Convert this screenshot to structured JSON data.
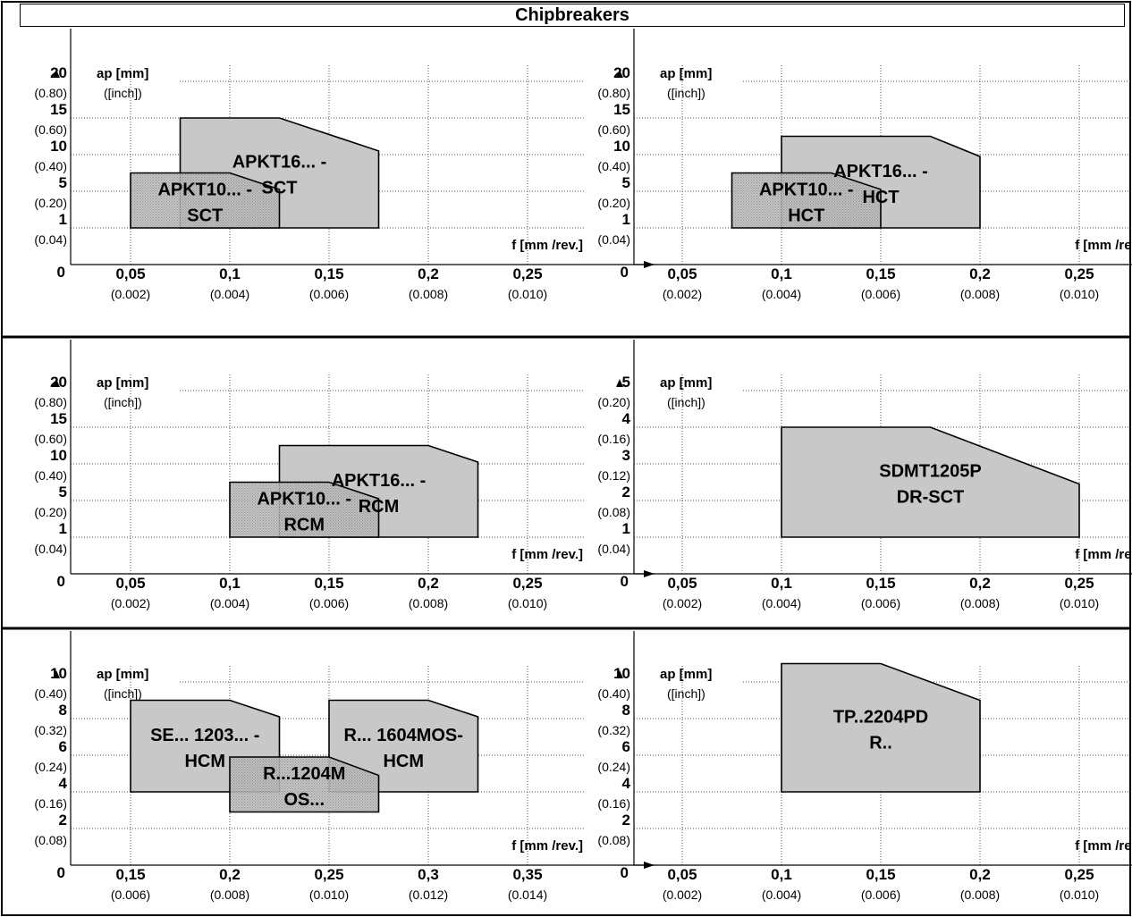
{
  "title": "Chipbreakers",
  "chart_data": [
    {
      "type": "area",
      "ylabel": "ap [mm]",
      "ylabel_sub": "([inch])",
      "xlabel": "f [mm /rev.]",
      "x_ticks": [
        "0,05",
        "0,1",
        "0,15",
        "0,2",
        "0,25"
      ],
      "x_ticks_inch": [
        "(0.002)",
        "(0.004)",
        "(0.006)",
        "(0.008)",
        "(0.010)"
      ],
      "y_ticks": [
        "1",
        "5",
        "10",
        "15",
        "20"
      ],
      "y_ticks_inch": [
        "(0.04)",
        "(0.20)",
        "(0.40)",
        "(0.60)",
        "(0.80)"
      ],
      "origin_label": "0",
      "regions": [
        {
          "label_lines": [
            "APKT16... -",
            "SCT"
          ],
          "shade": "light",
          "points": [
            [
              0.075,
              0
            ],
            [
              0.075,
              3
            ],
            [
              0.125,
              3
            ],
            [
              0.175,
              2.1
            ],
            [
              0.175,
              0
            ]
          ]
        },
        {
          "label_lines": [
            "APKT10... -",
            "SCT"
          ],
          "shade": "dark",
          "points": [
            [
              0.05,
              0
            ],
            [
              0.05,
              1.5
            ],
            [
              0.1,
              1.5
            ],
            [
              0.125,
              1.05
            ],
            [
              0.125,
              0
            ]
          ]
        }
      ]
    },
    {
      "type": "area",
      "ylabel": "ap [mm]",
      "ylabel_sub": "([inch])",
      "xlabel": "f [mm /rev.]",
      "x_ticks": [
        "0,05",
        "0,1",
        "0,15",
        "0,2",
        "0,25"
      ],
      "x_ticks_inch": [
        "(0.002)",
        "(0.004)",
        "(0.006)",
        "(0.008)",
        "(0.010)"
      ],
      "y_ticks": [
        "1",
        "5",
        "10",
        "15",
        "20"
      ],
      "y_ticks_inch": [
        "(0.04)",
        "(0.20)",
        "(0.40)",
        "(0.60)",
        "(0.80)"
      ],
      "origin_label": "0",
      "regions": [
        {
          "label_lines": [
            "APKT16... -",
            "HCT"
          ],
          "shade": "light",
          "points": [
            [
              0.1,
              0
            ],
            [
              0.1,
              2.5
            ],
            [
              0.175,
              2.5
            ],
            [
              0.2,
              1.95
            ],
            [
              0.2,
              0
            ]
          ]
        },
        {
          "label_lines": [
            "APKT10... -",
            "HCT"
          ],
          "shade": "dark",
          "points": [
            [
              0.075,
              0
            ],
            [
              0.075,
              1.5
            ],
            [
              0.125,
              1.5
            ],
            [
              0.15,
              1.05
            ],
            [
              0.15,
              0
            ]
          ]
        }
      ]
    },
    {
      "type": "area",
      "ylabel": "ap [mm]",
      "ylabel_sub": "([inch])",
      "xlabel": "f [mm /rev.]",
      "x_ticks": [
        "0,05",
        "0,1",
        "0,15",
        "0,2",
        "0,25"
      ],
      "x_ticks_inch": [
        "(0.002)",
        "(0.004)",
        "(0.006)",
        "(0.008)",
        "(0.010)"
      ],
      "y_ticks": [
        "1",
        "5",
        "10",
        "15",
        "20"
      ],
      "y_ticks_inch": [
        "(0.04)",
        "(0.20)",
        "(0.40)",
        "(0.60)",
        "(0.80)"
      ],
      "origin_label": "0",
      "regions": [
        {
          "label_lines": [
            "APKT16... -",
            "RCM"
          ],
          "shade": "light",
          "points": [
            [
              0.125,
              0
            ],
            [
              0.125,
              2.5
            ],
            [
              0.2,
              2.5
            ],
            [
              0.225,
              2.05
            ],
            [
              0.225,
              0
            ]
          ]
        },
        {
          "label_lines": [
            "APKT10... -",
            "RCM"
          ],
          "shade": "dark",
          "points": [
            [
              0.1,
              0
            ],
            [
              0.1,
              1.5
            ],
            [
              0.15,
              1.5
            ],
            [
              0.175,
              1.05
            ],
            [
              0.175,
              0
            ]
          ]
        }
      ]
    },
    {
      "type": "area",
      "ylabel": "ap [mm]",
      "ylabel_sub": "([inch])",
      "xlabel": "f [mm /rev.]",
      "x_ticks": [
        "0,05",
        "0,1",
        "0,15",
        "0,2",
        "0,25"
      ],
      "x_ticks_inch": [
        "(0.002)",
        "(0.004)",
        "(0.006)",
        "(0.008)",
        "(0.010)"
      ],
      "y_ticks": [
        "1",
        "2",
        "3",
        "4",
        "5"
      ],
      "y_ticks_inch": [
        "(0.04)",
        "(0.08)",
        "(0.12)",
        "(0.16)",
        "(0.20)"
      ],
      "origin_label": "0",
      "regions": [
        {
          "label_lines": [
            "SDMT1205P",
            "DR-SCT"
          ],
          "shade": "light",
          "points": [
            [
              0.1,
              0
            ],
            [
              0.1,
              3
            ],
            [
              0.175,
              3
            ],
            [
              0.25,
              1.45
            ],
            [
              0.25,
              0
            ]
          ]
        }
      ]
    },
    {
      "type": "area",
      "ylabel": "ap [mm]",
      "ylabel_sub": "([inch])",
      "xlabel": "f [mm /rev.]",
      "x_ticks": [
        "0,15",
        "0,2",
        "0,25",
        "0,3",
        "0,35"
      ],
      "x_ticks_inch": [
        "(0.006)",
        "(0.008)",
        "(0.010)",
        "(0.012)",
        "(0.014)"
      ],
      "y_ticks": [
        "2",
        "4",
        "6",
        "8",
        "10"
      ],
      "y_ticks_inch": [
        "(0.08)",
        "(0.16)",
        "(0.24)",
        "(0.32)",
        "(0.40)"
      ],
      "origin_label": "0",
      "regions": [
        {
          "label_lines": [
            "SE... 1203... -",
            "HCM"
          ],
          "shade": "light",
          "points": [
            [
              0.15,
              1
            ],
            [
              0.15,
              3.5
            ],
            [
              0.2,
              3.5
            ],
            [
              0.225,
              3.05
            ],
            [
              0.225,
              1
            ]
          ]
        },
        {
          "label_lines": [
            "R... 1604MOS-",
            "HCM"
          ],
          "shade": "light",
          "points": [
            [
              0.25,
              1
            ],
            [
              0.25,
              3.5
            ],
            [
              0.3,
              3.5
            ],
            [
              0.325,
              3.05
            ],
            [
              0.325,
              1
            ]
          ]
        },
        {
          "label_lines": [
            "R...1204M",
            "OS..."
          ],
          "shade": "dark",
          "points": [
            [
              0.2,
              0.45
            ],
            [
              0.2,
              1.95
            ],
            [
              0.25,
              1.95
            ],
            [
              0.275,
              1.45
            ],
            [
              0.275,
              0.45
            ]
          ]
        }
      ]
    },
    {
      "type": "area",
      "ylabel": "ap [mm]",
      "ylabel_sub": "([inch])",
      "xlabel": "f [mm /rev.]",
      "x_ticks": [
        "0,05",
        "0,1",
        "0,15",
        "0,2",
        "0,25"
      ],
      "x_ticks_inch": [
        "(0.002)",
        "(0.004)",
        "(0.006)",
        "(0.008)",
        "(0.010)"
      ],
      "y_ticks": [
        "2",
        "4",
        "6",
        "8",
        "10"
      ],
      "y_ticks_inch": [
        "(0.08)",
        "(0.16)",
        "(0.24)",
        "(0.32)",
        "(0.40)"
      ],
      "origin_label": "0",
      "regions": [
        {
          "label_lines": [
            "TP..2204PD",
            "R.."
          ],
          "shade": "light",
          "points": [
            [
              0.1,
              1
            ],
            [
              0.1,
              4.5
            ],
            [
              0.15,
              4.5
            ],
            [
              0.2,
              3.5
            ],
            [
              0.2,
              1
            ]
          ]
        }
      ]
    }
  ]
}
